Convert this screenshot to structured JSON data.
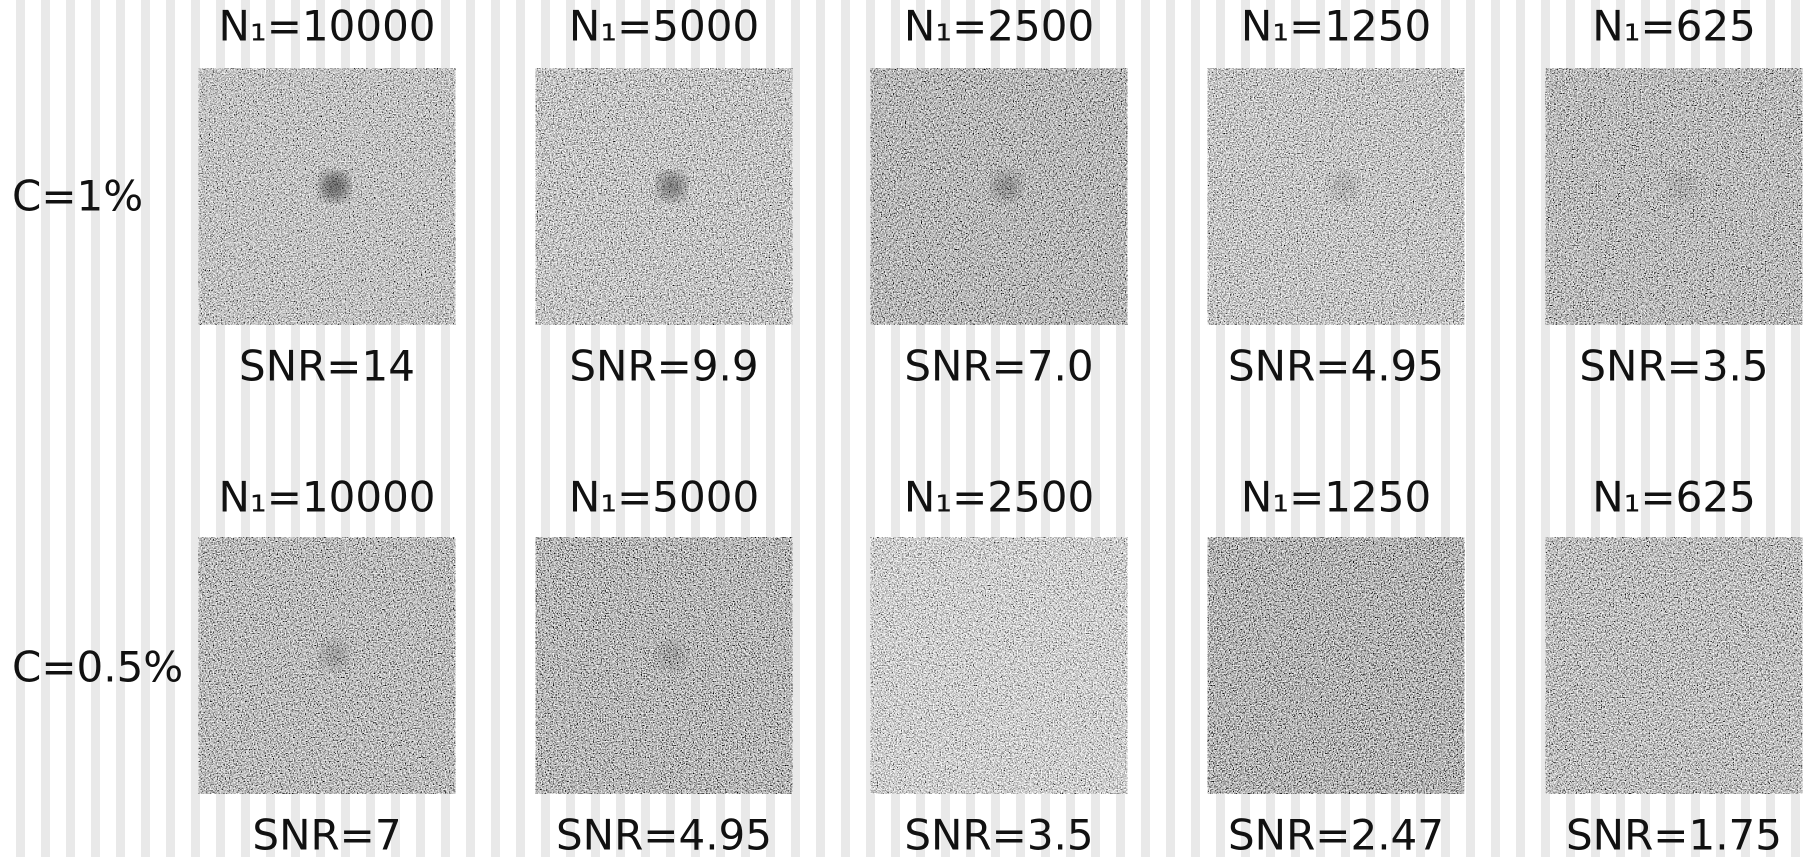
{
  "rows": [
    {
      "label": "C=1%",
      "columns": [
        {
          "header": "N₁=10000",
          "snr": "SNR=14"
        },
        {
          "header": "N₁=5000",
          "snr": "SNR=9.9"
        },
        {
          "header": "N₁=2500",
          "snr": "SNR=7.0"
        },
        {
          "header": "N₁=1250",
          "snr": "SNR=4.95"
        },
        {
          "header": "N₁=625",
          "snr": "SNR=3.5"
        }
      ]
    },
    {
      "label": "C=0.5%",
      "columns": [
        {
          "header": "N₁=10000",
          "snr": "SNR=7"
        },
        {
          "header": "N₁=5000",
          "snr": "SNR=4.95"
        },
        {
          "header": "N₁=2500",
          "snr": "SNR=3.5"
        },
        {
          "header": "N₁=1250",
          "snr": "SNR=2.47"
        },
        {
          "header": "N₁=625",
          "snr": "SNR=1.75"
        }
      ]
    }
  ]
}
